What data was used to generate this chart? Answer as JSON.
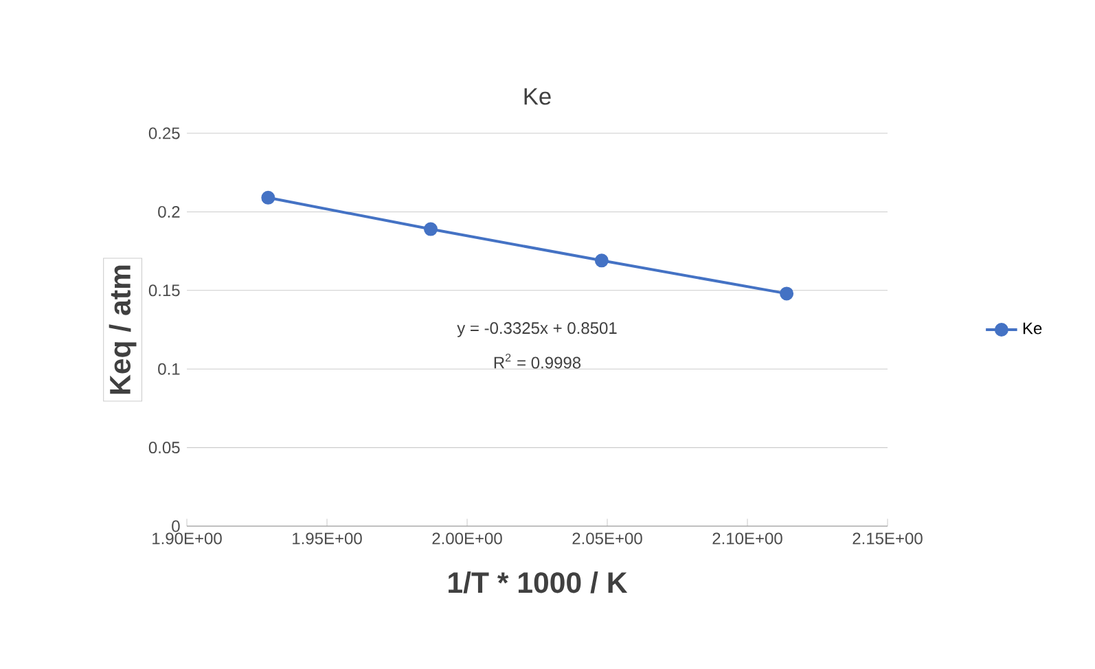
{
  "chart_data": {
    "type": "line",
    "title": "Ke",
    "xlabel": "1/T * 1000 / K",
    "ylabel": "Keq / atm",
    "x": [
      1.929,
      1.987,
      2.048,
      2.114
    ],
    "series": [
      {
        "name": "Ke",
        "color": "#4472c4",
        "values": [
          0.209,
          0.189,
          0.169,
          0.148
        ]
      }
    ],
    "xlim": [
      1.9,
      2.15
    ],
    "xticks": [
      {
        "value": 1.9,
        "label": "1.90E+00"
      },
      {
        "value": 1.95,
        "label": "1.95E+00"
      },
      {
        "value": 2.0,
        "label": "2.00E+00"
      },
      {
        "value": 2.05,
        "label": "2.05E+00"
      },
      {
        "value": 2.1,
        "label": "2.10E+00"
      },
      {
        "value": 2.15,
        "label": "2.15E+00"
      }
    ],
    "ylim": [
      0,
      0.25
    ],
    "yticks": [
      0,
      0.05,
      0.1,
      0.15,
      0.2,
      0.25
    ],
    "grid": "y",
    "legend": "right",
    "marker": "circle",
    "line_style": "solid",
    "annotations": [
      "y = -0.3325x + 0.8501",
      "R$^{2}$ = 0.9998"
    ]
  }
}
